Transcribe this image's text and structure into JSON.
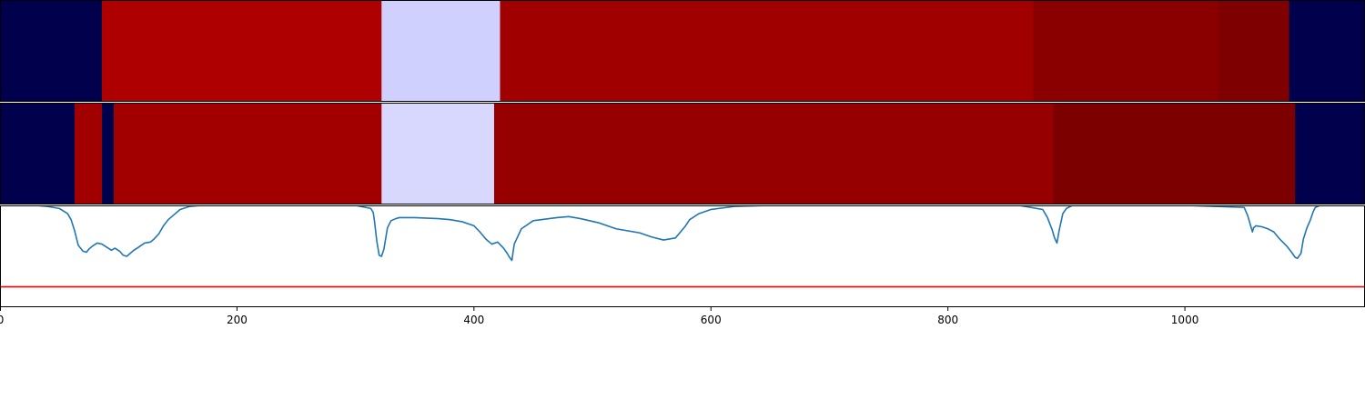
{
  "chart_data": [
    {
      "type": "heatmap",
      "name": "track-1",
      "segments": [
        {
          "x0": 0,
          "x1": 86,
          "color": "#00004c"
        },
        {
          "x0": 86,
          "x1": 322,
          "color": "#ae0000"
        },
        {
          "x0": 322,
          "x1": 422,
          "color": "#d0d0ff"
        },
        {
          "x0": 422,
          "x1": 872,
          "color": "#a00000"
        },
        {
          "x0": 872,
          "x1": 1028,
          "color": "#8a0000"
        },
        {
          "x0": 1028,
          "x1": 1088,
          "color": "#7e0000"
        },
        {
          "x0": 1088,
          "x1": 1152,
          "color": "#00004c"
        }
      ]
    },
    {
      "type": "heatmap",
      "name": "track-2",
      "segments": [
        {
          "x0": 0,
          "x1": 63,
          "color": "#00004c"
        },
        {
          "x0": 63,
          "x1": 86,
          "color": "#a20000"
        },
        {
          "x0": 86,
          "x1": 96,
          "color": "#00004c"
        },
        {
          "x0": 96,
          "x1": 322,
          "color": "#a20000"
        },
        {
          "x0": 322,
          "x1": 417,
          "color": "#d8d8ff"
        },
        {
          "x0": 417,
          "x1": 889,
          "color": "#970000"
        },
        {
          "x0": 889,
          "x1": 1093,
          "color": "#7c0000"
        },
        {
          "x0": 1093,
          "x1": 1152,
          "color": "#00004c"
        }
      ]
    },
    {
      "type": "line",
      "ylim": [
        0,
        1
      ],
      "series": [
        {
          "color": "#1f77b4",
          "x": [
            0,
            30,
            40,
            50,
            57,
            60,
            63,
            66,
            70,
            73,
            75,
            78,
            82,
            86,
            90,
            94,
            97,
            101,
            104,
            107,
            110,
            113,
            117,
            122,
            127,
            130,
            134,
            138,
            142,
            147,
            152,
            160,
            170,
            180,
            200,
            240,
            300,
            313,
            315,
            316,
            317,
            318,
            320,
            322,
            324,
            327,
            330,
            334,
            337,
            342,
            350,
            370,
            380,
            390,
            400,
            405,
            410,
            415,
            420,
            425,
            428,
            430,
            432,
            434,
            440,
            450,
            470,
            480,
            490,
            505,
            520,
            540,
            550,
            560,
            570,
            578,
            582,
            590,
            600,
            620,
            650,
            700,
            760,
            800,
            860,
            880,
            882,
            884,
            886,
            888,
            890,
            892,
            894,
            897,
            900,
            905,
            910,
            940,
            1000,
            1050,
            1053,
            1055,
            1057,
            1058,
            1060,
            1065,
            1070,
            1075,
            1080,
            1086,
            1090,
            1093,
            1095,
            1098,
            1100,
            1103,
            1106,
            1108,
            1110,
            1114,
            1120,
            1130,
            1152
          ],
          "y": [
            1.0,
            1.0,
            0.99,
            0.97,
            0.92,
            0.86,
            0.75,
            0.61,
            0.55,
            0.54,
            0.57,
            0.6,
            0.63,
            0.62,
            0.59,
            0.56,
            0.58,
            0.55,
            0.51,
            0.5,
            0.53,
            0.56,
            0.59,
            0.63,
            0.64,
            0.67,
            0.72,
            0.8,
            0.86,
            0.91,
            0.96,
            0.99,
            1.0,
            1.0,
            1.0,
            1.0,
            1.0,
            0.97,
            0.93,
            0.85,
            0.75,
            0.65,
            0.51,
            0.5,
            0.57,
            0.78,
            0.85,
            0.87,
            0.88,
            0.88,
            0.88,
            0.87,
            0.86,
            0.84,
            0.8,
            0.74,
            0.67,
            0.62,
            0.64,
            0.58,
            0.53,
            0.49,
            0.46,
            0.62,
            0.77,
            0.85,
            0.88,
            0.89,
            0.87,
            0.83,
            0.77,
            0.73,
            0.69,
            0.66,
            0.68,
            0.79,
            0.86,
            0.92,
            0.96,
            0.99,
            1.0,
            1.0,
            1.0,
            1.0,
            1.0,
            0.96,
            0.92,
            0.88,
            0.82,
            0.76,
            0.68,
            0.63,
            0.76,
            0.92,
            0.97,
            1.0,
            1.0,
            1.0,
            1.0,
            0.98,
            0.9,
            0.82,
            0.74,
            0.78,
            0.8,
            0.79,
            0.77,
            0.74,
            0.67,
            0.6,
            0.54,
            0.49,
            0.48,
            0.53,
            0.67,
            0.78,
            0.86,
            0.93,
            0.98,
            1.0,
            1.0,
            1.0,
            1.0
          ]
        },
        {
          "color": "#ff0000",
          "x": [
            0,
            1152
          ],
          "y": [
            0.2,
            0.2
          ]
        }
      ]
    }
  ],
  "x_axis": {
    "ticks": [
      {
        "value": 0,
        "label": "0"
      },
      {
        "value": 200,
        "label": "200"
      },
      {
        "value": 400,
        "label": "400"
      },
      {
        "value": 600,
        "label": "600"
      },
      {
        "value": 800,
        "label": "800"
      },
      {
        "value": 1000,
        "label": "1000"
      }
    ],
    "xlim": [
      0,
      1152
    ]
  }
}
